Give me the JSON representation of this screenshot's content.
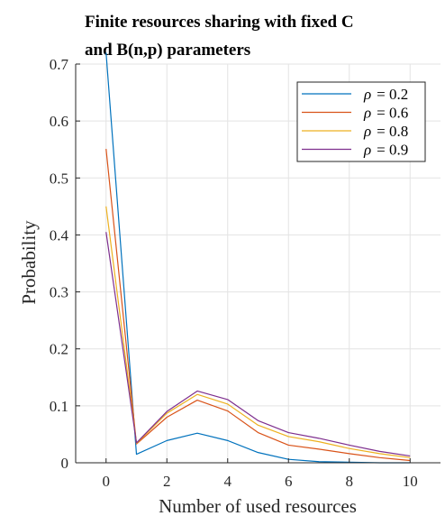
{
  "chart_data": {
    "type": "line",
    "title_lines": [
      "Finite resources sharing with fixed C",
      "and B(n,p) parameters"
    ],
    "xlabel": "Number of used resources",
    "ylabel": "Probability",
    "xlim": [
      -1,
      11
    ],
    "ylim": [
      0,
      0.7
    ],
    "xticks": [
      0,
      2,
      4,
      6,
      8,
      10
    ],
    "yticks": [
      0,
      0.1,
      0.2,
      0.3,
      0.4,
      0.5,
      0.6,
      0.7
    ],
    "grid": true,
    "legend_position": "top-right",
    "x": [
      0,
      1,
      2,
      3,
      4,
      5,
      6,
      7,
      8,
      9,
      10
    ],
    "series": [
      {
        "name": "ρ = 0.2",
        "legend_symbol": "ρ",
        "legend_value": "= 0.2",
        "color": "#0072BD",
        "values": [
          0.72,
          0.015,
          0.039,
          0.052,
          0.039,
          0.018,
          0.006,
          0.002,
          0.001,
          0.0,
          0.0
        ]
      },
      {
        "name": "ρ = 0.6",
        "legend_symbol": "ρ",
        "legend_value": "= 0.6",
        "color": "#D95319",
        "values": [
          0.551,
          0.033,
          0.08,
          0.11,
          0.091,
          0.053,
          0.031,
          0.024,
          0.016,
          0.009,
          0.004
        ]
      },
      {
        "name": "ρ = 0.8",
        "legend_symbol": "ρ",
        "legend_value": "= 0.8",
        "color": "#EDB120",
        "values": [
          0.45,
          0.034,
          0.087,
          0.12,
          0.103,
          0.066,
          0.046,
          0.037,
          0.025,
          0.016,
          0.009
        ]
      },
      {
        "name": "ρ = 0.9",
        "legend_symbol": "ρ",
        "legend_value": "= 0.9",
        "color": "#7E2F8E",
        "values": [
          0.405,
          0.035,
          0.09,
          0.126,
          0.111,
          0.074,
          0.053,
          0.043,
          0.031,
          0.02,
          0.012
        ]
      }
    ]
  }
}
